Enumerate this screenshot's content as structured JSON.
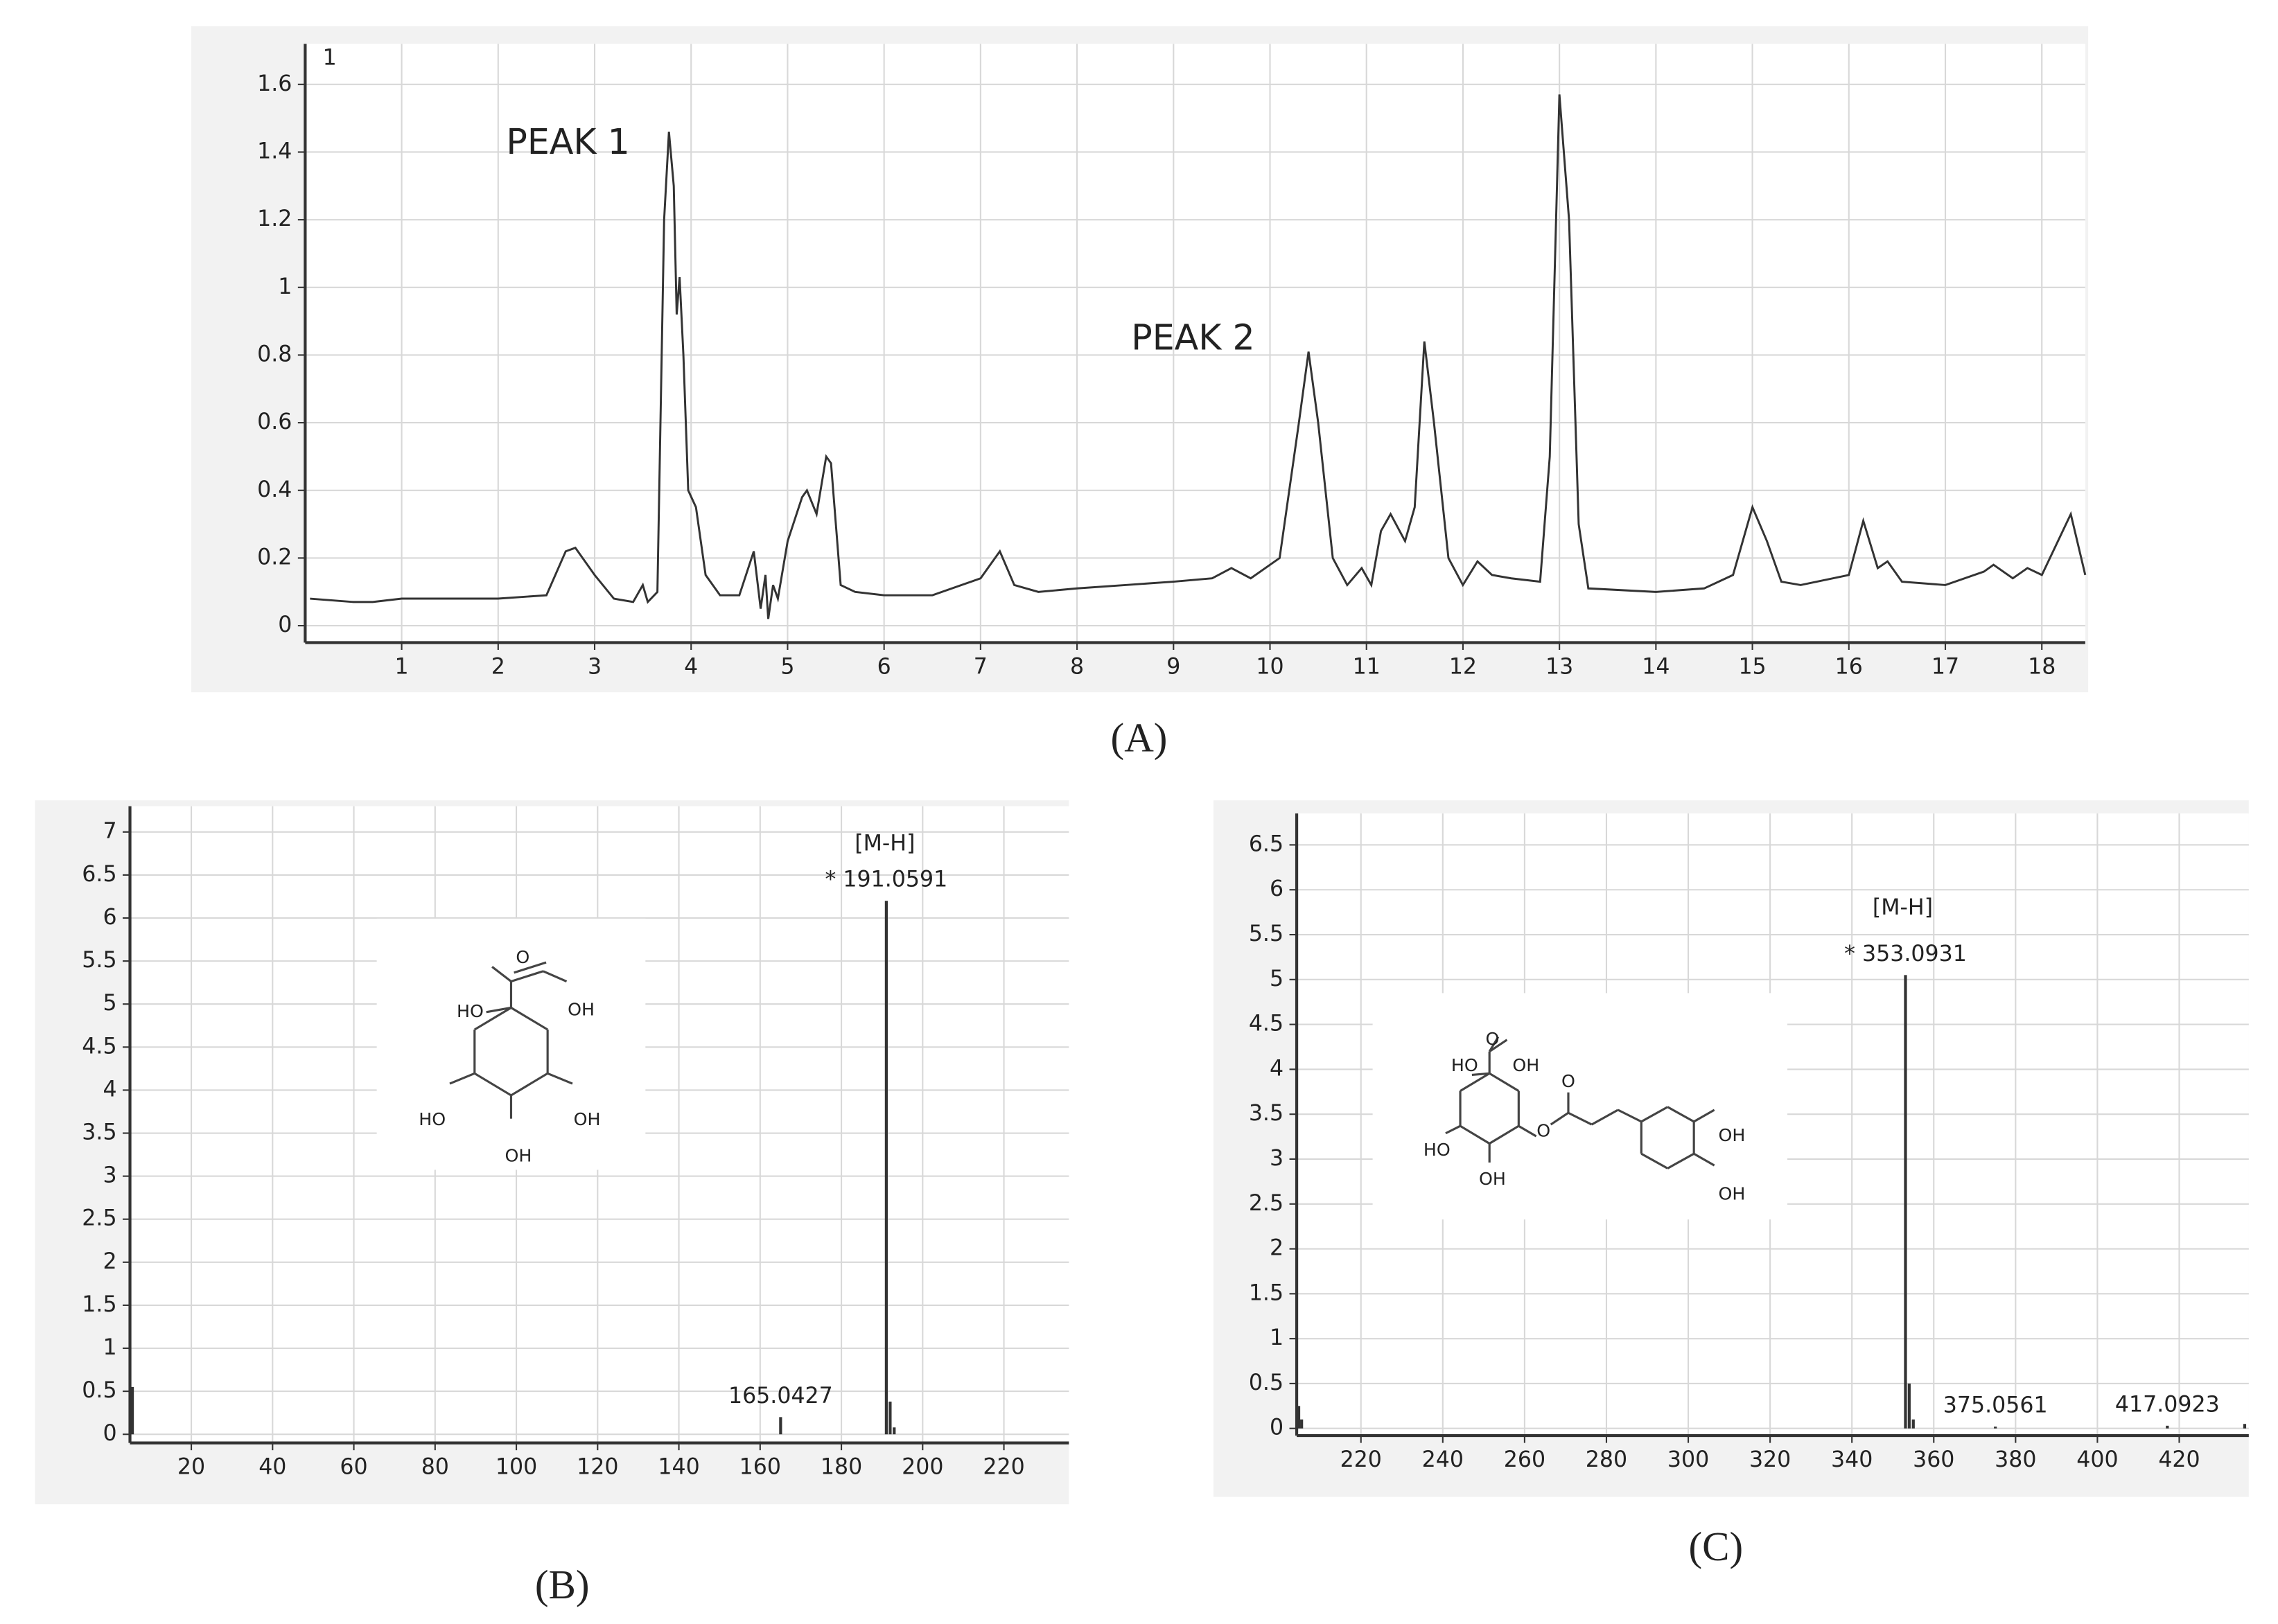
{
  "chart_data": [
    {
      "type": "line",
      "caption": "(A)",
      "trace_label": "1",
      "annotations": [
        "PEAK 1",
        "PEAK 2"
      ],
      "color": "#333333",
      "grid": true,
      "xlim": [
        0,
        18.45
      ],
      "ylim": [
        -0.05,
        1.72
      ],
      "xticks": [
        1,
        2,
        3,
        4,
        5,
        6,
        7,
        8,
        9,
        10,
        11,
        12,
        13,
        14,
        15,
        16,
        17,
        18
      ],
      "yticks": [
        0,
        0.2,
        0.4,
        0.6,
        0.8,
        1,
        1.2,
        1.4,
        1.6
      ],
      "x": [
        0.05,
        0.5,
        0.7,
        1,
        2,
        2.5,
        2.7,
        2.8,
        3.0,
        3.2,
        3.4,
        3.5,
        3.55,
        3.65,
        3.72,
        3.77,
        3.82,
        3.85,
        3.88,
        3.92,
        3.97,
        4.05,
        4.15,
        4.3,
        4.5,
        4.65,
        4.72,
        4.77,
        4.8,
        4.85,
        4.9,
        5.0,
        5.15,
        5.2,
        5.3,
        5.4,
        5.45,
        5.55,
        5.7,
        6,
        6.5,
        7.0,
        7.2,
        7.35,
        7.6,
        8,
        8.5,
        9,
        9.4,
        9.6,
        9.8,
        10.1,
        10.3,
        10.4,
        10.5,
        10.65,
        10.8,
        10.95,
        11.05,
        11.15,
        11.25,
        11.4,
        11.5,
        11.6,
        11.7,
        11.85,
        12.0,
        12.15,
        12.3,
        12.5,
        12.8,
        12.9,
        13.0,
        13.1,
        13.2,
        13.3,
        14,
        14.5,
        14.8,
        15.0,
        15.15,
        15.3,
        15.5,
        16.0,
        16.15,
        16.3,
        16.4,
        16.55,
        17,
        17.4,
        17.5,
        17.7,
        17.85,
        18.0,
        18.3,
        18.45
      ],
      "values": [
        0.08,
        0.07,
        0.07,
        0.08,
        0.08,
        0.09,
        0.22,
        0.23,
        0.15,
        0.08,
        0.07,
        0.12,
        0.07,
        0.1,
        1.2,
        1.46,
        1.3,
        0.92,
        1.03,
        0.8,
        0.4,
        0.35,
        0.15,
        0.09,
        0.09,
        0.22,
        0.05,
        0.15,
        0.02,
        0.12,
        0.08,
        0.25,
        0.38,
        0.4,
        0.33,
        0.5,
        0.48,
        0.12,
        0.1,
        0.09,
        0.09,
        0.14,
        0.22,
        0.12,
        0.1,
        0.11,
        0.12,
        0.13,
        0.14,
        0.17,
        0.14,
        0.2,
        0.6,
        0.81,
        0.6,
        0.2,
        0.12,
        0.17,
        0.12,
        0.28,
        0.33,
        0.25,
        0.35,
        0.84,
        0.6,
        0.2,
        0.12,
        0.19,
        0.15,
        0.14,
        0.13,
        0.5,
        1.57,
        1.2,
        0.3,
        0.11,
        0.1,
        0.11,
        0.15,
        0.35,
        0.25,
        0.13,
        0.12,
        0.15,
        0.31,
        0.17,
        0.19,
        0.13,
        0.12,
        0.16,
        0.18,
        0.14,
        0.17,
        0.15,
        0.33,
        0.15
      ]
    },
    {
      "type": "bar",
      "caption": "(B)",
      "color": "#333333",
      "grid": true,
      "xlim": [
        4.9,
        236
      ],
      "ylim": [
        -0.1,
        7.3
      ],
      "xticks": [
        20,
        40,
        60,
        80,
        100,
        120,
        140,
        160,
        180,
        200,
        220
      ],
      "yticks": [
        0,
        0.5,
        1,
        1.5,
        2,
        2.5,
        3,
        3.5,
        4,
        4.5,
        5,
        5.5,
        6,
        6.5,
        7
      ],
      "x": [
        5.5,
        165.0427,
        191.0591,
        192,
        193
      ],
      "values": [
        0.55,
        0.2,
        6.2,
        0.38,
        0.08
      ],
      "peak_labels": [
        null,
        "165.0427",
        "* 191.0591",
        null,
        null
      ],
      "ion_label": "[M-H]",
      "structure_labels": [
        "O",
        "HO",
        "OH",
        "HO",
        "OH",
        "OH"
      ]
    },
    {
      "type": "bar",
      "caption": "(C)",
      "color": "#333333",
      "grid": true,
      "xlim": [
        204.3,
        437
      ],
      "ylim": [
        -0.08,
        6.85
      ],
      "xticks": [
        220,
        240,
        260,
        280,
        300,
        320,
        340,
        360,
        380,
        400,
        420
      ],
      "yticks": [
        0,
        0.5,
        1,
        1.5,
        2,
        2.5,
        3,
        3.5,
        4,
        4.5,
        5,
        5.5,
        6,
        6.5
      ],
      "x": [
        204.8,
        205.5,
        353.0931,
        354,
        355,
        375.0561,
        417.0923,
        436
      ],
      "values": [
        0.25,
        0.1,
        5.05,
        0.5,
        0.1,
        0.02,
        0.03,
        0.05
      ],
      "peak_labels": [
        null,
        null,
        "* 353.0931",
        null,
        null,
        "375.0561",
        "417.0923",
        null
      ],
      "ion_label": "[M-H]",
      "structure_labels": [
        "O",
        "HO",
        "OH",
        "HO",
        "OH",
        "O",
        "O",
        "OH",
        "OH"
      ]
    }
  ]
}
